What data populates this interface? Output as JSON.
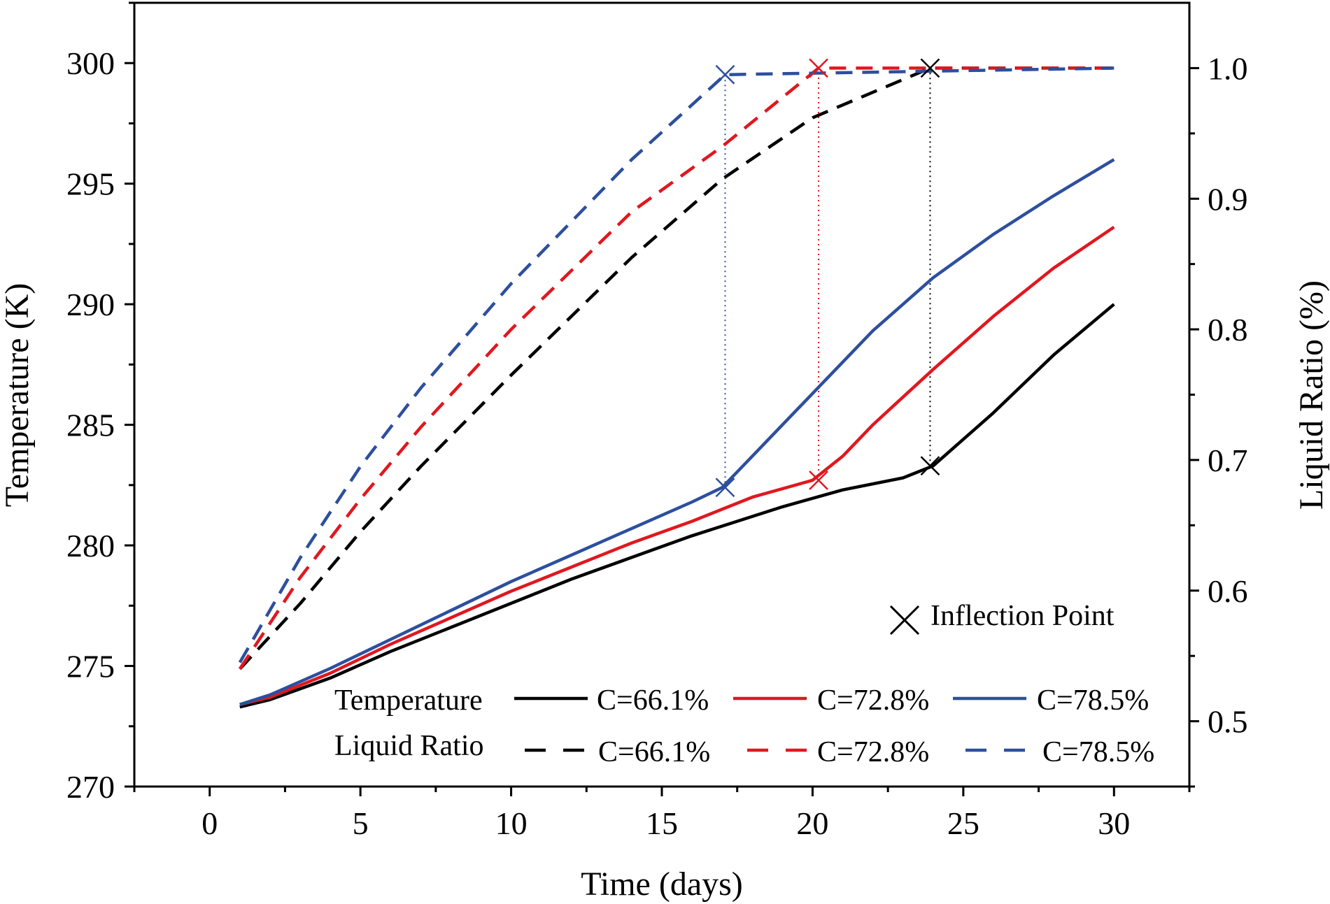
{
  "chart_data": {
    "type": "line",
    "xlabel": "Time (days)",
    "ylabel_left": "Temperature (K)",
    "ylabel_right": "Liquid Ratio (%)",
    "xlim": [
      -2.5,
      32.5
    ],
    "ylim_left": [
      270,
      302.5
    ],
    "ylim_right": [
      0.45,
      1.05
    ],
    "x_ticks": [
      0,
      5,
      10,
      15,
      20,
      25,
      30
    ],
    "y_left_ticks": [
      270,
      275,
      280,
      285,
      290,
      295,
      300
    ],
    "y_right_ticks": [
      0.5,
      0.6,
      0.7,
      0.8,
      0.9,
      1.0
    ],
    "y_right_tick_labels": [
      "0.5",
      "0.6",
      "0.7",
      "0.8",
      "0.9",
      "1.0"
    ],
    "grid": false,
    "legend_labels": {
      "temperature": "Temperature",
      "liquid_ratio": "Liquid Ratio",
      "inflection": "Inflection Point"
    },
    "series": [
      {
        "name": "C=66.1%",
        "kind": "temperature",
        "color": "#000000",
        "x": [
          1,
          2,
          4,
          6,
          8,
          10,
          12,
          14,
          16,
          17,
          19,
          21,
          23,
          24,
          26,
          28,
          30
        ],
        "values": [
          273.3,
          273.6,
          274.5,
          275.6,
          276.6,
          277.6,
          278.6,
          279.5,
          280.4,
          280.8,
          281.6,
          282.3,
          282.8,
          283.3,
          285.5,
          287.9,
          290.0
        ],
        "inflection": [
          23.9,
          283.3
        ]
      },
      {
        "name": "C=72.8%",
        "kind": "temperature",
        "color": "#e1171f",
        "x": [
          1,
          2,
          4,
          6,
          8,
          10,
          12,
          14,
          16,
          18,
          20,
          21,
          22,
          24,
          26,
          28,
          30
        ],
        "values": [
          273.4,
          273.7,
          274.7,
          275.9,
          277.0,
          278.1,
          279.1,
          280.1,
          281.0,
          282.0,
          282.7,
          283.7,
          285.0,
          287.3,
          289.5,
          291.5,
          293.2
        ],
        "inflection": [
          20.2,
          282.7
        ]
      },
      {
        "name": "C=78.5%",
        "kind": "temperature",
        "color": "#2d4f9e",
        "x": [
          1,
          2,
          4,
          6,
          8,
          10,
          12,
          14,
          16,
          17,
          18,
          20,
          22,
          24,
          26,
          28,
          30
        ],
        "values": [
          273.4,
          273.8,
          274.9,
          276.1,
          277.3,
          278.5,
          279.6,
          280.7,
          281.8,
          282.4,
          283.7,
          286.3,
          288.9,
          291.1,
          292.9,
          294.5,
          296.0
        ],
        "inflection": [
          17.1,
          282.4
        ]
      },
      {
        "name": "C=66.1%",
        "kind": "liquid_ratio",
        "color": "#000000",
        "x": [
          1,
          2,
          3,
          5,
          7,
          10,
          14,
          17,
          20,
          23.9,
          30
        ],
        "values": [
          0.54,
          0.565,
          0.59,
          0.645,
          0.695,
          0.765,
          0.855,
          0.915,
          0.962,
          1.0,
          1.0
        ],
        "inflection": [
          23.9,
          1.0
        ]
      },
      {
        "name": "C=72.8%",
        "kind": "liquid_ratio",
        "color": "#e1171f",
        "x": [
          1,
          2,
          3,
          5,
          7,
          10,
          14,
          17,
          20.2,
          30
        ],
        "values": [
          0.54,
          0.575,
          0.61,
          0.67,
          0.725,
          0.8,
          0.89,
          0.94,
          1.0,
          1.0
        ],
        "inflection": [
          20.2,
          1.0
        ]
      },
      {
        "name": "C=78.5%",
        "kind": "liquid_ratio",
        "color": "#2d4f9e",
        "x": [
          1,
          2,
          3,
          5,
          7,
          10,
          14,
          17.1,
          30
        ],
        "values": [
          0.545,
          0.585,
          0.625,
          0.695,
          0.755,
          0.835,
          0.93,
          0.995,
          1.0
        ],
        "inflection": [
          17.1,
          0.995
        ]
      }
    ]
  }
}
